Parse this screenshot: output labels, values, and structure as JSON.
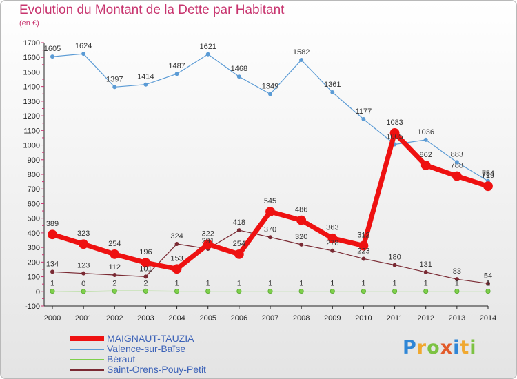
{
  "chart_data": {
    "type": "line",
    "title": "Evolution du Montant de la Dette par Habitant",
    "subtitle": "(en €)",
    "xlabel": "",
    "ylabel": "",
    "ylim": [
      -100,
      1700
    ],
    "yticks": [
      -100,
      0,
      100,
      200,
      300,
      400,
      500,
      600,
      700,
      800,
      900,
      1000,
      1100,
      1200,
      1300,
      1400,
      1500,
      1600,
      1700
    ],
    "x": [
      "2000",
      "2001",
      "2002",
      "2003",
      "2004",
      "2005",
      "2006",
      "2007",
      "2008",
      "2009",
      "2010",
      "2011",
      "2012",
      "2013",
      "2014"
    ],
    "grid": false,
    "legend_position": "bottom-left",
    "series": [
      {
        "name": "MAIGNAUT-TAUZIA",
        "color": "#ee1111",
        "values": [
          389,
          323,
          254,
          196,
          153,
          322,
          254,
          545,
          486,
          363,
          312,
          1083,
          862,
          788,
          719
        ]
      },
      {
        "name": "Valence-sur-Baïse",
        "color": "#5b9bd5",
        "values": [
          1605,
          1624,
          1397,
          1414,
          1487,
          1621,
          1468,
          1349,
          1582,
          1361,
          1177,
          1005,
          1036,
          883,
          754
        ]
      },
      {
        "name": "Béraut",
        "color": "#7ed04b",
        "values": [
          1,
          0,
          2,
          2,
          1,
          1,
          1,
          1,
          1,
          1,
          1,
          1,
          1,
          1,
          1
        ]
      },
      {
        "name": "Saint-Orens-Pouy-Petit",
        "color": "#7a2a33",
        "values": [
          134,
          123,
          112,
          101,
          324,
          291,
          418,
          370,
          320,
          278,
          223,
          180,
          131,
          83,
          54
        ]
      }
    ]
  },
  "logo": {
    "letters": [
      "P",
      "r",
      "o",
      "x",
      "i",
      "t",
      "i"
    ],
    "colors": [
      "#2f86d6",
      "#f0a830",
      "#7cc242",
      "#e25b2a",
      "#2f86d6",
      "#f0a830",
      "#7cc242"
    ]
  }
}
